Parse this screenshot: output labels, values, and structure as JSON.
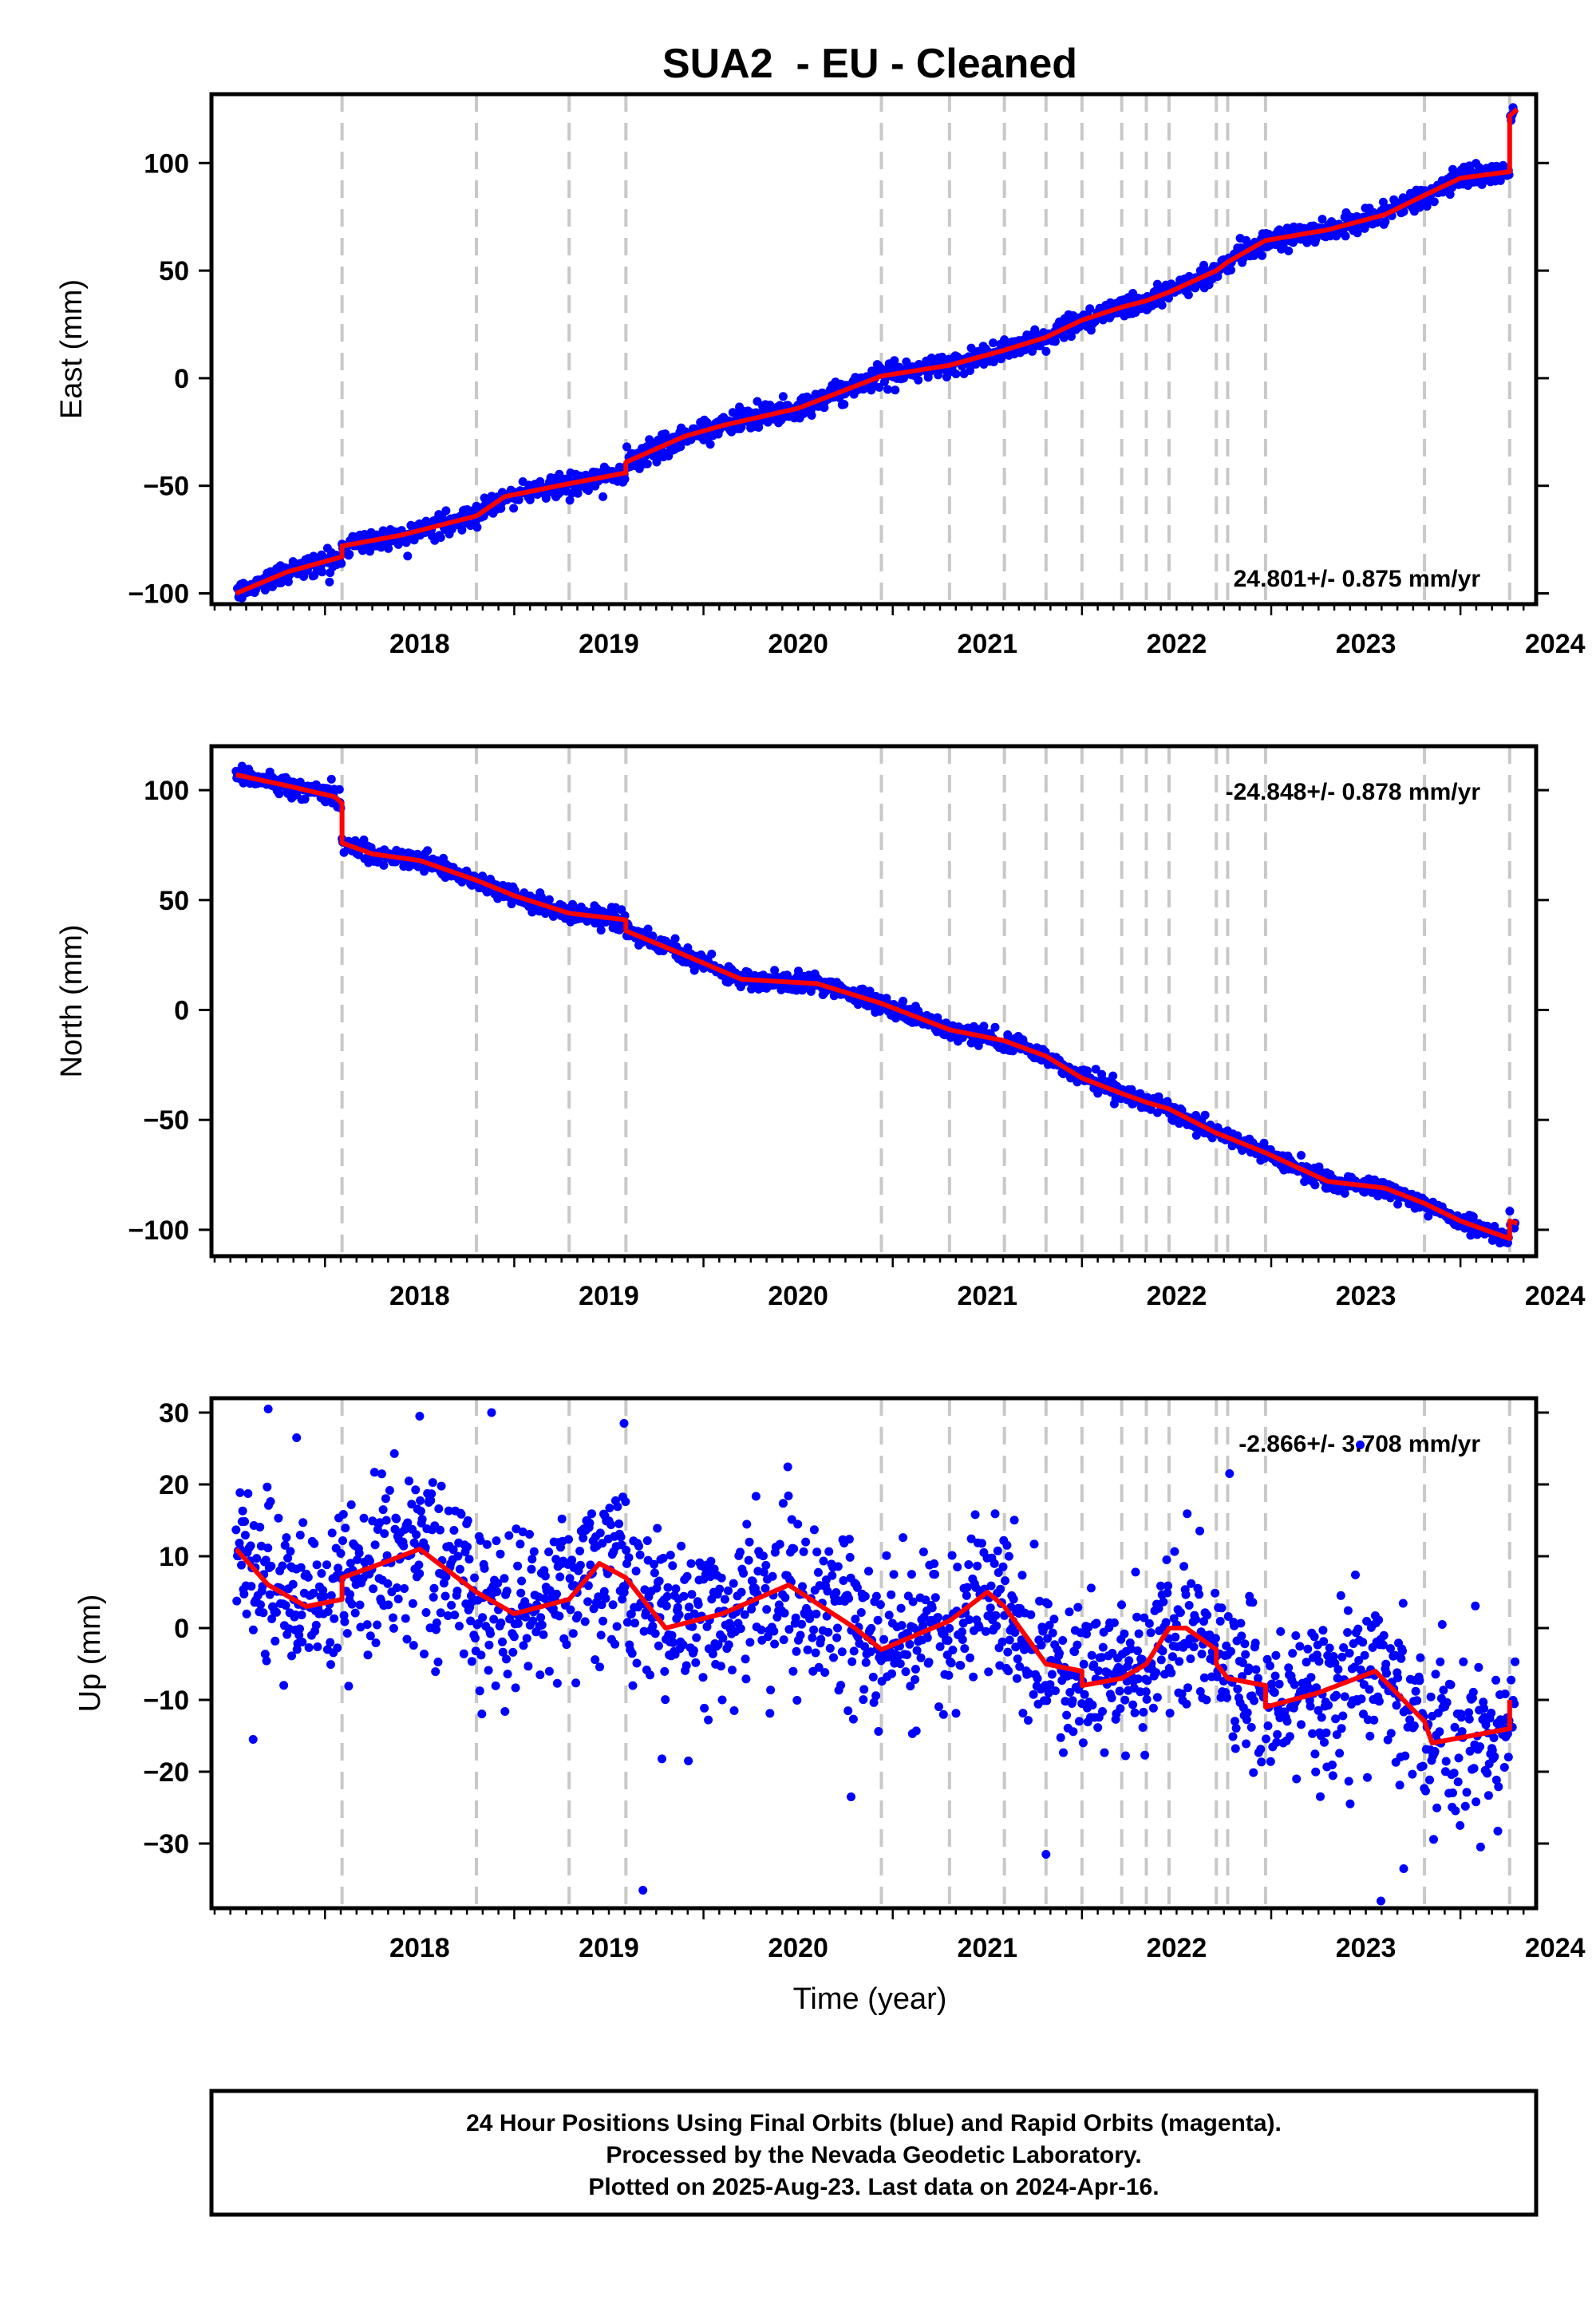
{
  "title": "SUA2  - EU - Cleaned",
  "xlabel": "Time (year)",
  "footer": [
    "24 Hour Positions Using Final Orbits (blue) and Rapid Orbits (magenta).",
    "Processed by the Nevada Geodetic Laboratory.",
    "Plotted on 2025-Aug-23. Last data on 2024-Apr-16."
  ],
  "colors": {
    "points": "#0000ff",
    "model": "#ff0000",
    "events": "#c8c8c8",
    "frame": "#000000"
  },
  "chart_data": [
    {
      "type": "scatter",
      "panel": "east",
      "ylabel": "East (mm)",
      "rate_label": "24.801+/- 0.875 mm/yr",
      "xlim": [
        2017.4,
        2024.4
      ],
      "ylim": [
        -105,
        132
      ],
      "yticks": [
        -100,
        -50,
        0,
        50,
        100
      ],
      "ytick_labels": [
        "−100",
        "−50",
        "0",
        "50",
        "100"
      ],
      "xticks": [
        2018,
        2019,
        2020,
        2021,
        2022,
        2023,
        2024
      ],
      "xtick_labels": [
        "2018",
        "2019",
        "2020",
        "2021",
        "2022",
        "2023",
        "2024"
      ],
      "events": [
        2018.09,
        2018.8,
        2019.29,
        2019.59,
        2020.94,
        2021.3,
        2021.59,
        2021.81,
        2022.0,
        2022.21,
        2022.34,
        2022.46,
        2022.71,
        2022.77,
        2022.97,
        2023.81,
        2024.26
      ],
      "series": [
        {
          "values_x": [
            2017.53,
            2017.8,
            2018.09,
            2018.09,
            2018.4,
            2018.8,
            2018.95,
            2019.29,
            2019.59,
            2019.59,
            2019.9,
            2020.1,
            2020.5,
            2020.94,
            2021.3,
            2021.59,
            2021.81,
            2022.0,
            2022.21,
            2022.34,
            2022.46,
            2022.71,
            2022.77,
            2022.97,
            2023.3,
            2023.6,
            2023.81,
            2024.0,
            2024.26,
            2024.26,
            2024.3
          ],
          "values_y": [
            -100,
            -90,
            -83,
            -78,
            -73,
            -64,
            -55,
            -49,
            -44,
            -39,
            -27,
            -22,
            -14,
            1,
            6,
            13,
            19,
            27,
            33,
            36,
            40,
            50,
            54,
            64,
            69,
            76,
            85,
            93,
            96,
            122,
            125
          ]
        }
      ],
      "scatter_sd": 2.5
    },
    {
      "type": "scatter",
      "panel": "north",
      "ylabel": "North (mm)",
      "rate_label": "-24.848+/- 0.878 mm/yr",
      "xlim": [
        2017.4,
        2024.4
      ],
      "ylim": [
        -112,
        120
      ],
      "yticks": [
        -100,
        -50,
        0,
        50,
        100
      ],
      "ytick_labels": [
        "−100",
        "−50",
        "0",
        "50",
        "100"
      ],
      "xticks": [
        2018,
        2019,
        2020,
        2021,
        2022,
        2023,
        2024
      ],
      "xtick_labels": [
        "2018",
        "2019",
        "2020",
        "2021",
        "2022",
        "2023",
        "2024"
      ],
      "events": [
        2018.09,
        2018.8,
        2019.29,
        2019.59,
        2020.94,
        2021.3,
        2021.59,
        2021.81,
        2022.0,
        2022.21,
        2022.34,
        2022.46,
        2022.71,
        2022.77,
        2022.97,
        2023.81,
        2024.26
      ],
      "series": [
        {
          "values_x": [
            2017.53,
            2017.8,
            2018.05,
            2018.09,
            2018.09,
            2018.25,
            2018.5,
            2018.8,
            2019.0,
            2019.29,
            2019.59,
            2019.59,
            2019.9,
            2020.2,
            2020.6,
            2020.94,
            2021.3,
            2021.59,
            2021.81,
            2022.0,
            2022.21,
            2022.34,
            2022.46,
            2022.71,
            2022.77,
            2022.97,
            2023.3,
            2023.6,
            2023.81,
            2024.0,
            2024.26,
            2024.26,
            2024.3
          ],
          "values_y": [
            107,
            102,
            97,
            94,
            76,
            71,
            68,
            59,
            52,
            44,
            41,
            36,
            25,
            14,
            12,
            3,
            -9,
            -14,
            -21,
            -31,
            -38,
            -42,
            -45,
            -56,
            -58,
            -65,
            -78,
            -81,
            -88,
            -96,
            -104,
            -96,
            -97
          ]
        }
      ],
      "scatter_sd": 2.0
    },
    {
      "type": "scatter",
      "panel": "up",
      "ylabel": "Up (mm)",
      "rate_label": "-2.866+/- 3.708 mm/yr",
      "xlim": [
        2017.4,
        2024.4
      ],
      "ylim": [
        -39,
        32
      ],
      "yticks": [
        -30,
        -20,
        -10,
        0,
        10,
        20,
        30
      ],
      "ytick_labels": [
        "−30",
        "−20",
        "−10",
        "0",
        "10",
        "20",
        "30"
      ],
      "xticks": [
        2018,
        2019,
        2020,
        2021,
        2022,
        2023,
        2024
      ],
      "xtick_labels": [
        "2018",
        "2019",
        "2020",
        "2021",
        "2022",
        "2023",
        "2024"
      ],
      "events": [
        2018.09,
        2018.8,
        2019.29,
        2019.59,
        2020.94,
        2021.3,
        2021.59,
        2021.81,
        2022.0,
        2022.21,
        2022.34,
        2022.46,
        2022.71,
        2022.77,
        2022.97,
        2023.81,
        2024.26
      ],
      "series": [
        {
          "values_x": [
            2017.53,
            2017.7,
            2017.9,
            2018.09,
            2018.09,
            2018.3,
            2018.5,
            2018.8,
            2019.0,
            2019.29,
            2019.45,
            2019.59,
            2019.8,
            2020.1,
            2020.45,
            2020.8,
            2020.94,
            2021.3,
            2021.5,
            2021.59,
            2021.81,
            2022.0,
            2022.0,
            2022.21,
            2022.34,
            2022.46,
            2022.55,
            2022.71,
            2022.71,
            2022.77,
            2022.97,
            2022.97,
            2023.25,
            2023.55,
            2023.81,
            2023.85,
            2024.26,
            2024.26
          ],
          "values_y": [
            11,
            6,
            3,
            4,
            7,
            9,
            11,
            5,
            2,
            4,
            9,
            7,
            0,
            2,
            6,
            0,
            -3,
            1,
            5,
            3,
            -5,
            -6,
            -8,
            -7,
            -5,
            0,
            0,
            -3,
            -5,
            -7,
            -8,
            -11,
            -9,
            -6,
            -13,
            -16,
            -14,
            -10
          ]
        }
      ],
      "scatter_sd": 5.5,
      "outliers": [
        [
          2017.7,
          30.5
        ],
        [
          2017.85,
          26.5
        ],
        [
          2018.5,
          29.5
        ],
        [
          2018.88,
          30
        ],
        [
          2019.58,
          28.5
        ],
        [
          2019.68,
          -36.5
        ],
        [
          2019.92,
          -18.5
        ],
        [
          2020.78,
          -23.5
        ],
        [
          2021.81,
          -31.5
        ],
        [
          2023.47,
          25.5
        ],
        [
          2023.58,
          -38
        ],
        [
          2023.7,
          -33.5
        ],
        [
          2022.78,
          21.5
        ],
        [
          2017.62,
          -15.5
        ]
      ]
    }
  ]
}
